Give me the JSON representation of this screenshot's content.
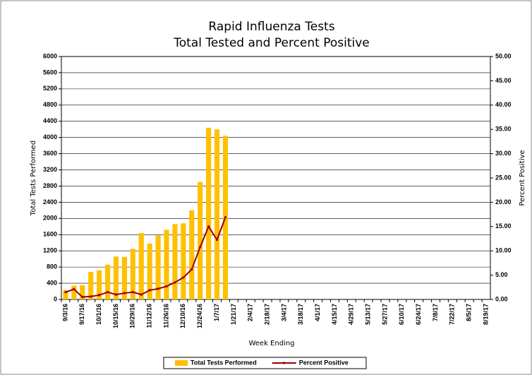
{
  "chart_data": {
    "type": "bar-line",
    "title": "Rapid Influenza Tests",
    "subtitle": "Total Tested and Percent Positive",
    "x_label": "Week Ending",
    "y_label": "Total Tests Performed",
    "y2_label": "Percent Positive",
    "categories": [
      "9/3/16",
      null,
      "9/17/16",
      null,
      "10/1/16",
      null,
      "10/15/16",
      null,
      "10/29/16",
      null,
      "11/12/16",
      null,
      "11/26/16",
      null,
      "12/10/16",
      null,
      "12/24/16",
      null,
      "1/7/17",
      null,
      "1/21/17",
      null,
      "2/4/17",
      null,
      "2/18/17",
      null,
      "3/4/17",
      null,
      "3/18/17",
      null,
      "4/1/17",
      null,
      "4/15/17",
      null,
      "4/29/17",
      null,
      "5/13/17",
      null,
      "5/27/17",
      null,
      "6/10/17",
      null,
      "6/24/17",
      null,
      "7/8/17",
      null,
      "7/22/17",
      null,
      "8/5/17",
      null,
      "8/19/17"
    ],
    "series": [
      {
        "name": "Total Tests Performed",
        "type": "bar",
        "color": "#ffc000",
        "values": [
          230,
          340,
          350,
          680,
          720,
          860,
          1060,
          1050,
          1250,
          1640,
          1380,
          1580,
          1720,
          1860,
          1880,
          2200,
          2900,
          4240,
          4200,
          4040,
          null,
          null,
          null,
          null,
          null,
          null,
          null,
          null,
          null,
          null,
          null,
          null,
          null,
          null,
          null,
          null,
          null,
          null,
          null,
          null,
          null,
          null,
          null,
          null,
          null,
          null,
          null,
          null,
          null,
          null,
          null
        ]
      },
      {
        "name": "Percent Positive",
        "type": "line",
        "axis": "y2",
        "color": "#990000",
        "values": [
          1.5,
          2.1,
          0.5,
          0.6,
          0.9,
          1.5,
          1.0,
          1.3,
          1.5,
          1.0,
          1.9,
          2.2,
          2.7,
          3.5,
          4.5,
          6.2,
          10.8,
          15.0,
          12.3,
          16.9,
          null,
          null,
          null,
          null,
          null,
          null,
          null,
          null,
          null,
          null,
          null,
          null,
          null,
          null,
          null,
          null,
          null,
          null,
          null,
          null,
          null,
          null,
          null,
          null,
          null,
          null,
          null,
          null,
          null,
          null,
          null
        ]
      }
    ],
    "ylim": [
      0,
      6000
    ],
    "yticks": [
      0,
      400,
      800,
      1200,
      1600,
      2000,
      2400,
      2800,
      3200,
      3600,
      4000,
      4400,
      4800,
      5200,
      5600,
      6000
    ],
    "y2lim": [
      0,
      50
    ],
    "y2ticks": [
      {
        "value": 0,
        "label": "0.00"
      },
      {
        "value": 5,
        "label": "5.00"
      },
      {
        "value": 10,
        "label": "10.00"
      },
      {
        "value": 15,
        "label": "15.00"
      },
      {
        "value": 20,
        "label": "20.00"
      },
      {
        "value": 25,
        "label": "25.00"
      },
      {
        "value": 30,
        "label": "30.00"
      },
      {
        "value": 35,
        "label": "35.00"
      },
      {
        "value": 40,
        "label": "40.00"
      },
      {
        "value": 45,
        "label": "45.00"
      },
      {
        "value": 50,
        "label": "50.00"
      }
    ],
    "grid": true,
    "legend": "bottom"
  }
}
